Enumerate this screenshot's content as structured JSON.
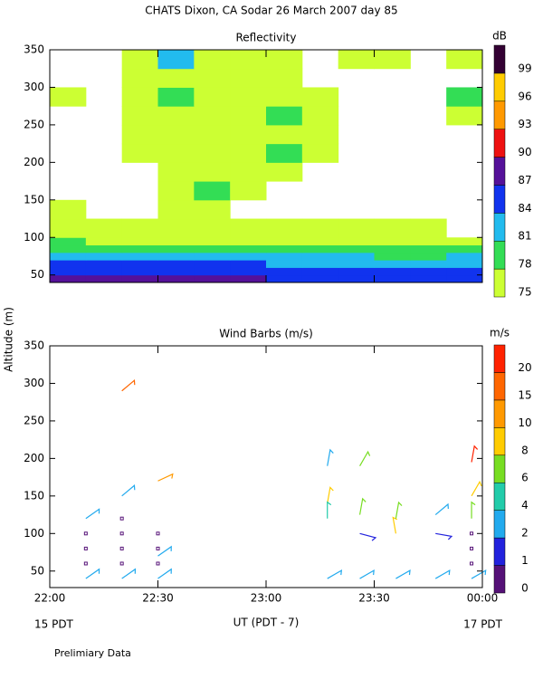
{
  "page": {
    "title": "CHATS Dixon, CA  Sodar  26 March 2007  day  85",
    "ylabel": "Altitude (m)",
    "xlabel": "UT  (PDT - 7)",
    "x_start_date": "15 PDT",
    "x_end_date": "17 PDT",
    "footer": "Prelimiary Data"
  },
  "chart_data": [
    {
      "type": "heatmap",
      "title": "Reflectivity",
      "colorbar_label": "dB",
      "x_edges": [
        0,
        10,
        20,
        30,
        40,
        50,
        60,
        70,
        80,
        90,
        100,
        110,
        120
      ],
      "y_edges": [
        40,
        50,
        60,
        70,
        80,
        90,
        100,
        125,
        150,
        175,
        200,
        225,
        250,
        275,
        300,
        325,
        350
      ],
      "values": [
        [
          87,
          87,
          87,
          87,
          87,
          87,
          85,
          85,
          85,
          85,
          85,
          85
        ],
        [
          85,
          85,
          85,
          85,
          85,
          85,
          85,
          85,
          85,
          85,
          85,
          85
        ],
        [
          85,
          85,
          85,
          85,
          85,
          85,
          82,
          82,
          82,
          82,
          82,
          82
        ],
        [
          82,
          82,
          82,
          82,
          82,
          82,
          82,
          82,
          82,
          79,
          79,
          82
        ],
        [
          79,
          79,
          79,
          79,
          79,
          79,
          79,
          79,
          79,
          79,
          79,
          79
        ],
        [
          79,
          76,
          76,
          76,
          76,
          76,
          76,
          76,
          76,
          76,
          76,
          76
        ],
        [
          76,
          76,
          76,
          76,
          76,
          76,
          76,
          76,
          76,
          76,
          76,
          null
        ],
        [
          76,
          null,
          null,
          76,
          76,
          null,
          null,
          null,
          null,
          null,
          null,
          null
        ],
        [
          null,
          null,
          null,
          76,
          79,
          76,
          null,
          null,
          null,
          null,
          null,
          null
        ],
        [
          null,
          null,
          null,
          76,
          76,
          76,
          76,
          null,
          null,
          null,
          null,
          null
        ],
        [
          null,
          null,
          76,
          76,
          76,
          76,
          79,
          76,
          null,
          null,
          null,
          null
        ],
        [
          null,
          null,
          76,
          76,
          76,
          76,
          76,
          76,
          null,
          null,
          null,
          null
        ],
        [
          null,
          null,
          76,
          76,
          76,
          76,
          79,
          76,
          null,
          null,
          null,
          76
        ],
        [
          76,
          null,
          76,
          79,
          76,
          76,
          76,
          76,
          null,
          null,
          null,
          79
        ],
        [
          null,
          null,
          76,
          76,
          76,
          76,
          76,
          null,
          null,
          null,
          null,
          null
        ],
        [
          null,
          null,
          76,
          82,
          76,
          76,
          76,
          null,
          76,
          76,
          null,
          76
        ]
      ],
      "levels": [
        75,
        78,
        81,
        84,
        87,
        90,
        93,
        96,
        99
      ],
      "colors": [
        "#ccff33",
        "#33dd55",
        "#22bbee",
        "#1133ee",
        "#551199",
        "#ee1111",
        "#ff9900",
        "#ffcc00",
        "#330033"
      ],
      "xlim": [
        0,
        120
      ],
      "ylim": [
        40,
        350
      ],
      "yticks": [
        50,
        100,
        150,
        200,
        250,
        300,
        350
      ]
    },
    {
      "type": "barbs",
      "title": "Wind Barbs (m/s)",
      "colorbar_label": "m/s",
      "x": [
        10,
        10,
        10,
        10,
        10,
        20,
        20,
        20,
        20,
        20,
        20,
        20,
        30,
        30,
        30,
        30,
        30,
        30,
        77,
        77,
        77,
        77,
        86,
        86,
        86,
        86,
        96,
        96,
        96,
        107,
        107,
        107,
        117,
        117,
        117,
        117,
        117,
        117,
        117
      ],
      "y": [
        40,
        60,
        80,
        100,
        120,
        40,
        60,
        80,
        100,
        120,
        150,
        290,
        40,
        60,
        80,
        100,
        70,
        170,
        40,
        140,
        120,
        190,
        40,
        100,
        125,
        190,
        40,
        100,
        120,
        40,
        100,
        125,
        40,
        60,
        80,
        100,
        120,
        150,
        195
      ],
      "speed": [
        2.5,
        0.5,
        0.5,
        0.5,
        3,
        2.5,
        0.5,
        0.5,
        0.5,
        0.5,
        3,
        16,
        2.5,
        0.5,
        0.5,
        0.5,
        3,
        13,
        2.5,
        9,
        5,
        2.5,
        2.5,
        1.5,
        6,
        6,
        2.5,
        8,
        6,
        2.5,
        1.5,
        3,
        2.5,
        0.5,
        0.5,
        0.5,
        6,
        8,
        20
      ],
      "direction": [
        35,
        0,
        0,
        0,
        35,
        35,
        0,
        0,
        0,
        0,
        40,
        40,
        35,
        0,
        0,
        0,
        35,
        25,
        30,
        80,
        90,
        80,
        30,
        -15,
        80,
        60,
        30,
        100,
        80,
        30,
        -10,
        40,
        30,
        0,
        0,
        0,
        90,
        60,
        80
      ],
      "levels": [
        0,
        1,
        2,
        4,
        6,
        8,
        10,
        15,
        20
      ],
      "colors": [
        "#551177",
        "#2222dd",
        "#22aaee",
        "#22ccaa",
        "#77dd22",
        "#ffcc00",
        "#ff9900",
        "#ff6600",
        "#ff2200"
      ],
      "xlim": [
        0,
        120
      ],
      "ylim": [
        28,
        350
      ],
      "yticks": [
        50,
        100,
        150,
        200,
        250,
        300,
        350
      ],
      "xticks": [
        {
          "value": 0,
          "label": "22:00"
        },
        {
          "value": 30,
          "label": "22:30"
        },
        {
          "value": 60,
          "label": "23:00"
        },
        {
          "value": 90,
          "label": "23:30"
        },
        {
          "value": 120,
          "label": "00:00"
        }
      ]
    }
  ]
}
